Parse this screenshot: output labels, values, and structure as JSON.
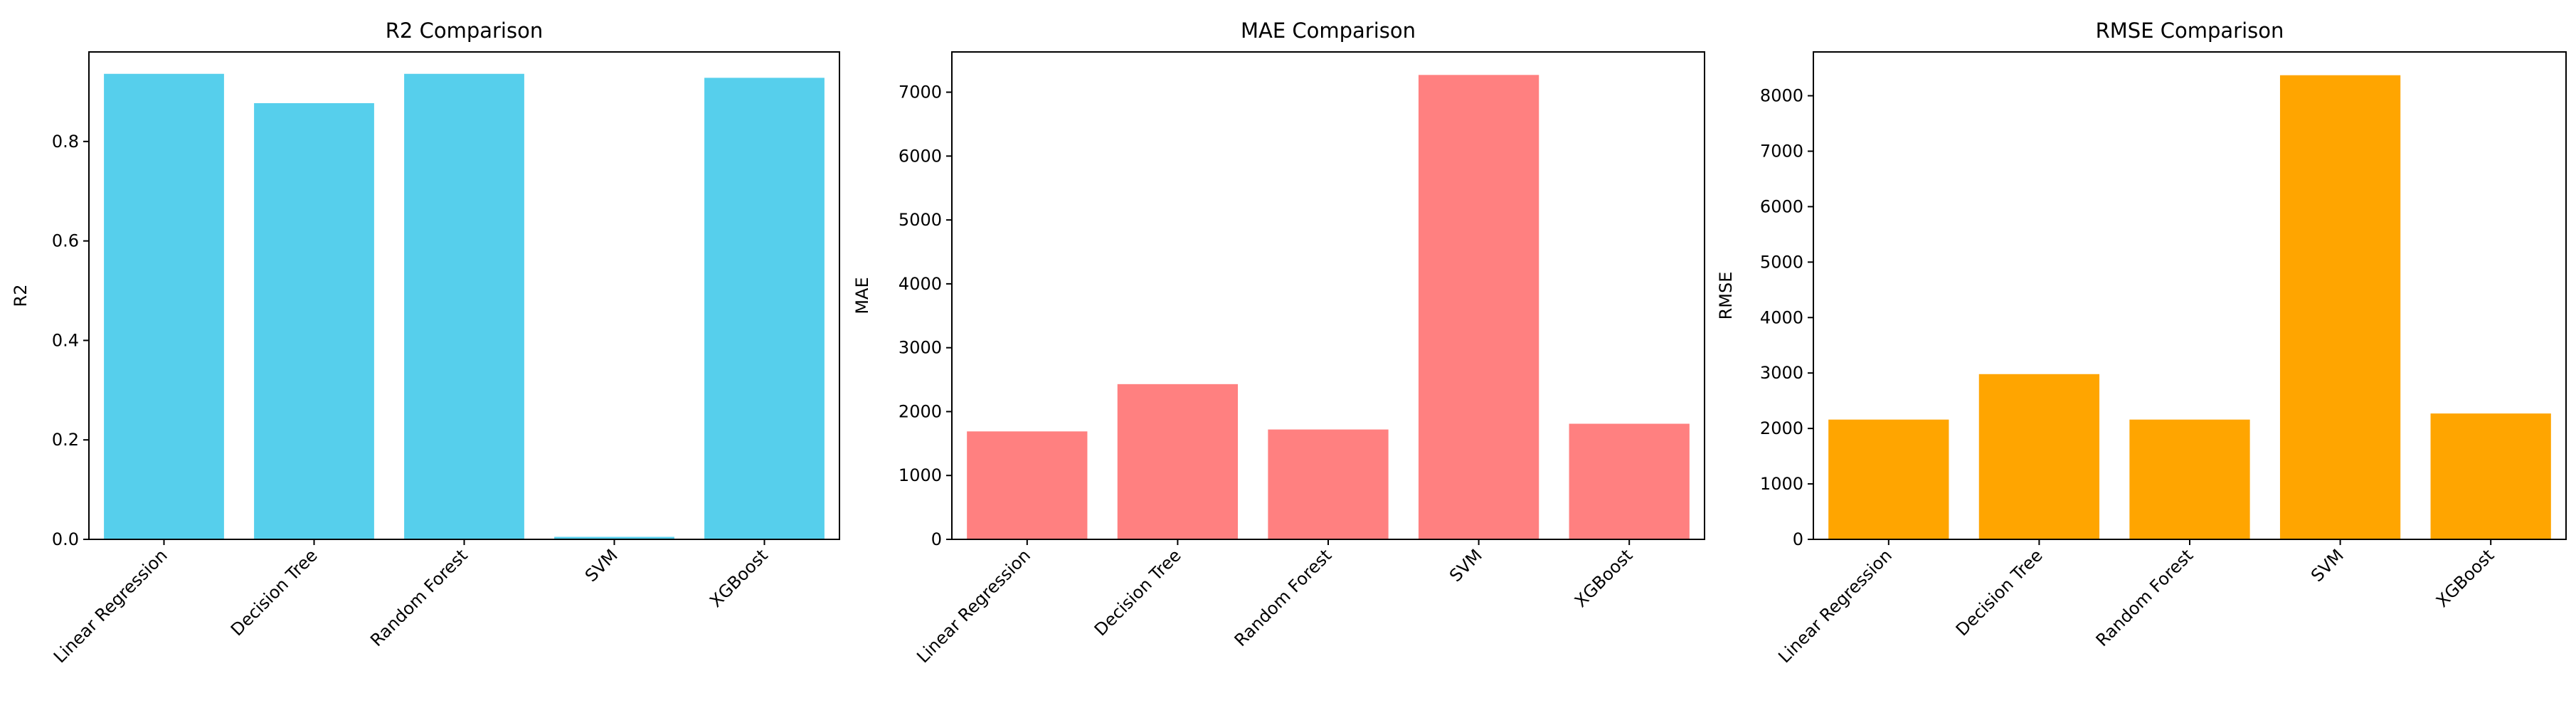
{
  "chart_data": [
    {
      "type": "bar",
      "title": "R2 Comparison",
      "xlabel": "",
      "ylabel": "R2",
      "categories": [
        "Linear Regression",
        "Decision Tree",
        "Random Forest",
        "SVM",
        "XGBoost"
      ],
      "values": [
        0.936,
        0.877,
        0.936,
        0.005,
        0.928
      ],
      "ylim": [
        0,
        0.98
      ],
      "yticks": [
        0.0,
        0.2,
        0.4,
        0.6,
        0.8
      ],
      "ytick_labels": [
        "0.0",
        "0.2",
        "0.4",
        "0.6",
        "0.8"
      ],
      "color": "#56CFEC",
      "grid": false
    },
    {
      "type": "bar",
      "title": "MAE Comparison",
      "xlabel": "",
      "ylabel": "MAE",
      "categories": [
        "Linear Regression",
        "Decision Tree",
        "Random Forest",
        "SVM",
        "XGBoost"
      ],
      "values": [
        1690,
        2430,
        1720,
        7270,
        1810
      ],
      "ylim": [
        0,
        7630
      ],
      "yticks": [
        0,
        1000,
        2000,
        3000,
        4000,
        5000,
        6000,
        7000
      ],
      "ytick_labels": [
        "0",
        "1000",
        "2000",
        "3000",
        "4000",
        "5000",
        "6000",
        "7000"
      ],
      "color": "#FF8080",
      "grid": false
    },
    {
      "type": "bar",
      "title": "RMSE Comparison",
      "xlabel": "",
      "ylabel": "RMSE",
      "categories": [
        "Linear Regression",
        "Decision Tree",
        "Random Forest",
        "SVM",
        "XGBoost"
      ],
      "values": [
        2160,
        2980,
        2160,
        8370,
        2270
      ],
      "ylim": [
        0,
        8790
      ],
      "yticks": [
        0,
        1000,
        2000,
        3000,
        4000,
        5000,
        6000,
        7000,
        8000
      ],
      "ytick_labels": [
        "0",
        "1000",
        "2000",
        "3000",
        "4000",
        "5000",
        "6000",
        "7000",
        "8000"
      ],
      "color": "#FFA500",
      "grid": false
    }
  ]
}
